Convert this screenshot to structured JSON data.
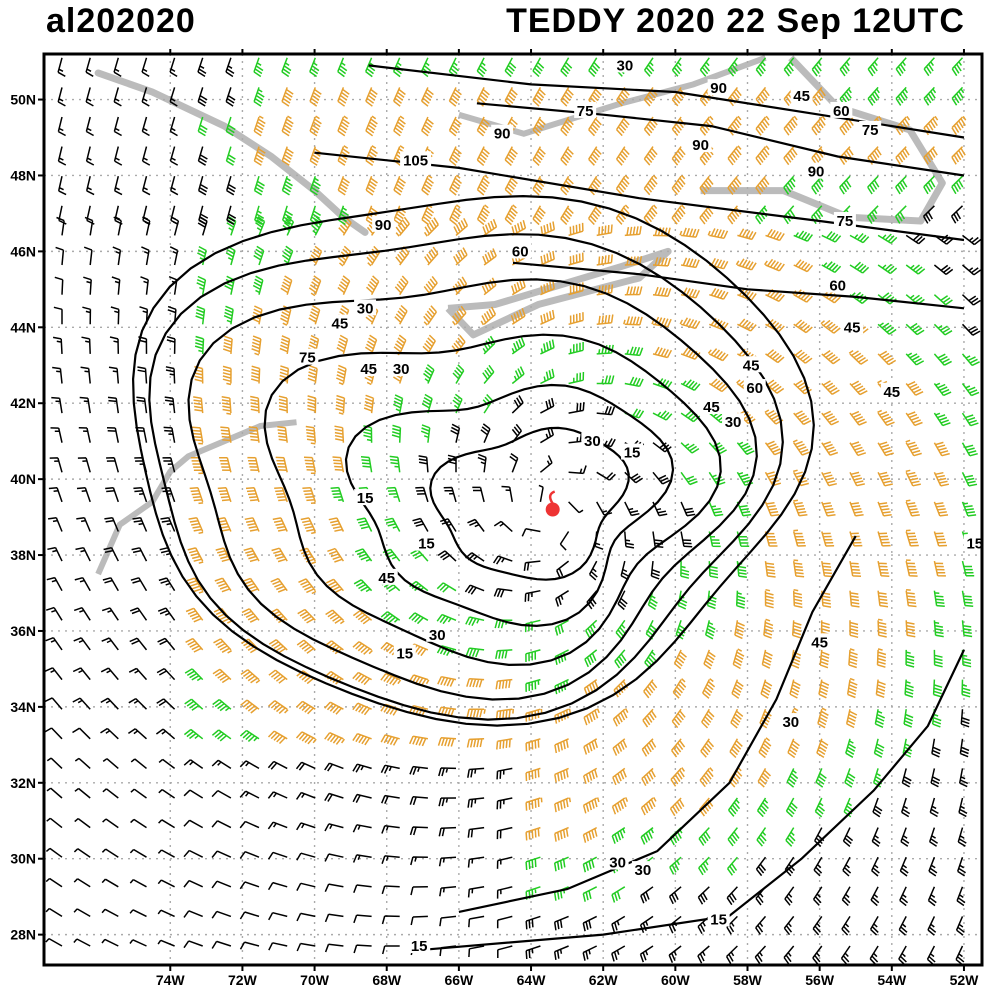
{
  "header": {
    "storm_id": "al202020",
    "title": "TEDDY 2020 22 Sep 12UTC"
  },
  "map": {
    "lon_range": [
      -77.5,
      -51.5
    ],
    "lat_range": [
      27.2,
      51.2
    ],
    "lon_ticks": [
      {
        "value": -74,
        "label": "74W"
      },
      {
        "value": -72,
        "label": "72W"
      },
      {
        "value": -70,
        "label": "70W"
      },
      {
        "value": -68,
        "label": "68W"
      },
      {
        "value": -66,
        "label": "66W"
      },
      {
        "value": -64,
        "label": "64W"
      },
      {
        "value": -62,
        "label": "62W"
      },
      {
        "value": -60,
        "label": "60W"
      },
      {
        "value": -58,
        "label": "58W"
      },
      {
        "value": -56,
        "label": "56W"
      },
      {
        "value": -54,
        "label": "54W"
      },
      {
        "value": -52,
        "label": "52W"
      }
    ],
    "lat_ticks": [
      {
        "value": 28,
        "label": "28N"
      },
      {
        "value": 30,
        "label": "30N"
      },
      {
        "value": 32,
        "label": "32N"
      },
      {
        "value": 34,
        "label": "34N"
      },
      {
        "value": 36,
        "label": "36N"
      },
      {
        "value": 38,
        "label": "38N"
      },
      {
        "value": 40,
        "label": "40N"
      },
      {
        "value": 42,
        "label": "42N"
      },
      {
        "value": 44,
        "label": "44N"
      },
      {
        "value": 46,
        "label": "46N"
      },
      {
        "value": 48,
        "label": "48N"
      },
      {
        "value": 50,
        "label": "50N"
      }
    ],
    "storm_center": {
      "lon": -63.4,
      "lat": 39.2
    },
    "colors": {
      "green": "#22cc22",
      "orange": "#e6a030",
      "red": "#ee4444",
      "black": "#000000",
      "land": "#bbbbbb",
      "storm_marker": "#ee3333"
    },
    "contour_labels": [
      {
        "text": "30",
        "lon": -61.4,
        "lat": 50.9
      },
      {
        "text": "90",
        "lon": -58.8,
        "lat": 50.3
      },
      {
        "text": "45",
        "lon": -56.5,
        "lat": 50.1
      },
      {
        "text": "60",
        "lon": -55.4,
        "lat": 49.7
      },
      {
        "text": "75",
        "lon": -54.6,
        "lat": 49.2
      },
      {
        "text": "75",
        "lon": -62.5,
        "lat": 49.7
      },
      {
        "text": "90",
        "lon": -64.8,
        "lat": 49.1
      },
      {
        "text": "90",
        "lon": -59.3,
        "lat": 48.8
      },
      {
        "text": "105",
        "lon": -67.2,
        "lat": 48.4
      },
      {
        "text": "90",
        "lon": -56.1,
        "lat": 48.1
      },
      {
        "text": "90",
        "lon": -68.1,
        "lat": 46.7
      },
      {
        "text": "75",
        "lon": -55.3,
        "lat": 46.8
      },
      {
        "text": "60",
        "lon": -64.3,
        "lat": 46.0
      },
      {
        "text": "60",
        "lon": -55.5,
        "lat": 45.1
      },
      {
        "text": "30",
        "lon": -68.6,
        "lat": 44.5
      },
      {
        "text": "45",
        "lon": -69.3,
        "lat": 44.1
      },
      {
        "text": "45",
        "lon": -55.1,
        "lat": 44.0
      },
      {
        "text": "75",
        "lon": -70.2,
        "lat": 43.2
      },
      {
        "text": "45",
        "lon": -68.5,
        "lat": 42.9
      },
      {
        "text": "30",
        "lon": -67.6,
        "lat": 42.9
      },
      {
        "text": "45",
        "lon": -57.9,
        "lat": 43.0
      },
      {
        "text": "60",
        "lon": -57.8,
        "lat": 42.4
      },
      {
        "text": "45",
        "lon": -54.0,
        "lat": 42.3
      },
      {
        "text": "45",
        "lon": -59.0,
        "lat": 41.9
      },
      {
        "text": "30",
        "lon": -58.4,
        "lat": 41.5
      },
      {
        "text": "30",
        "lon": -62.3,
        "lat": 41.0
      },
      {
        "text": "15",
        "lon": -61.2,
        "lat": 40.7
      },
      {
        "text": "15",
        "lon": -68.6,
        "lat": 39.5
      },
      {
        "text": "15",
        "lon": -66.9,
        "lat": 38.3
      },
      {
        "text": "45",
        "lon": -68.0,
        "lat": 37.4
      },
      {
        "text": "15",
        "lon": -51.7,
        "lat": 38.3
      },
      {
        "text": "45",
        "lon": -56.0,
        "lat": 35.7
      },
      {
        "text": "30",
        "lon": -66.6,
        "lat": 35.9
      },
      {
        "text": "15",
        "lon": -67.5,
        "lat": 35.4
      },
      {
        "text": "30",
        "lon": -56.8,
        "lat": 33.6
      },
      {
        "text": "30",
        "lon": -61.6,
        "lat": 29.9
      },
      {
        "text": "30",
        "lon": -60.9,
        "lat": 29.7
      },
      {
        "text": "15",
        "lon": -58.8,
        "lat": 28.4
      },
      {
        "text": "15",
        "lon": -67.1,
        "lat": 27.7
      }
    ]
  }
}
